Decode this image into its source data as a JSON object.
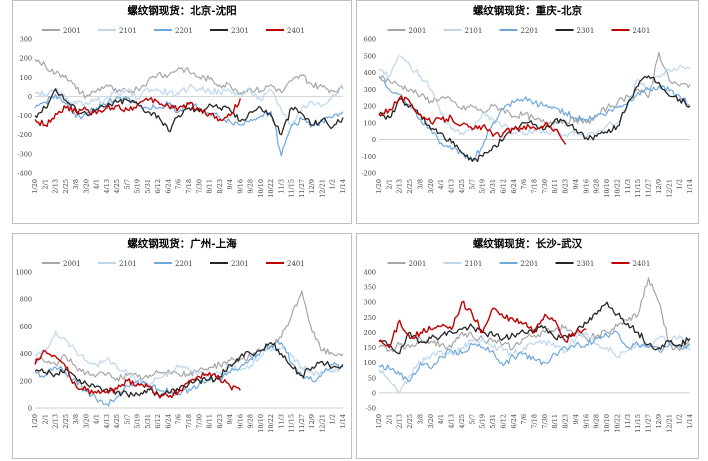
{
  "chart_data": [
    {
      "type": "line",
      "title": "螺纹钢现货：北京-沈阳",
      "ylim": [
        -400,
        300
      ],
      "yticks": [
        "300",
        "200",
        "100",
        "0",
        "-100",
        "-200",
        "-300",
        "-400"
      ],
      "x_tick_labels": [
        "1/20",
        "2/1",
        "2/13",
        "2/25",
        "3/8",
        "3/20",
        "4/1",
        "4/13",
        "4/25",
        "5/7",
        "5/19",
        "5/31",
        "6/12",
        "6/24",
        "7/6",
        "7/18",
        "7/30",
        "8/11",
        "8/23",
        "9/4",
        "9/16",
        "9/28",
        "10/10",
        "10/22",
        "11/3",
        "11/15",
        "11/27",
        "12/9",
        "12/21",
        "1/2",
        "1/14"
      ],
      "legend_position": "top",
      "series": [
        {
          "name": "2001",
          "color": "#a6a6a6",
          "width": 1.2,
          "end_index": 30,
          "values": [
            195,
            160,
            120,
            110,
            40,
            0,
            30,
            60,
            20,
            30,
            40,
            80,
            120,
            110,
            150,
            130,
            100,
            90,
            60,
            60,
            20,
            40,
            30,
            60,
            20,
            80,
            110,
            60,
            50,
            30,
            40
          ]
        },
        {
          "name": "2101",
          "color": "#bdd7ee",
          "width": 1.2,
          "end_index": 30,
          "values": [
            20,
            10,
            30,
            -10,
            -40,
            -30,
            -20,
            -10,
            20,
            30,
            -10,
            40,
            30,
            20,
            10,
            50,
            40,
            30,
            20,
            30,
            10,
            30,
            -20,
            30,
            -70,
            -150,
            -60,
            -30,
            -50,
            10,
            60
          ]
        },
        {
          "name": "2201",
          "color": "#6fa8dc",
          "width": 1.2,
          "end_index": 30,
          "values": [
            -60,
            -30,
            10,
            -40,
            -110,
            -90,
            -60,
            -40,
            0,
            -10,
            -40,
            -60,
            -60,
            -40,
            -80,
            -30,
            -60,
            -90,
            -110,
            -130,
            -150,
            -120,
            -100,
            -80,
            -310,
            -150,
            -120,
            -150,
            -130,
            -110,
            -80
          ]
        },
        {
          "name": "2301",
          "color": "#262626",
          "width": 1.3,
          "end_index": 30,
          "values": [
            -100,
            -60,
            40,
            -20,
            -70,
            -90,
            -70,
            -50,
            -30,
            -20,
            -40,
            -80,
            -100,
            -180,
            -100,
            -60,
            -80,
            -40,
            -60,
            -70,
            -130,
            -80,
            -60,
            -100,
            -200,
            -60,
            -90,
            -150,
            -120,
            -160,
            -110
          ]
        },
        {
          "name": "2401",
          "color": "#c00000",
          "width": 1.4,
          "end_index": 20,
          "values": [
            -120,
            -150,
            -90,
            -60,
            -80,
            -70,
            -90,
            -60,
            -50,
            -70,
            -40,
            -20,
            -30,
            -50,
            -60,
            -40,
            -70,
            -90,
            -120,
            -100,
            -10
          ]
        }
      ]
    },
    {
      "type": "line",
      "title": "螺纹钢现货：重庆-北京",
      "ylim": [
        -200,
        600
      ],
      "yticks": [
        "600",
        "500",
        "400",
        "300",
        "200",
        "100",
        "0",
        "-100",
        "-200"
      ],
      "x_tick_labels": [
        "1/20",
        "2/1",
        "2/13",
        "2/25",
        "3/8",
        "3/20",
        "4/1",
        "4/13",
        "4/25",
        "5/7",
        "5/19",
        "5/31",
        "6/12",
        "6/24",
        "7/6",
        "7/18",
        "7/30",
        "8/11",
        "8/23",
        "9/4",
        "9/16",
        "9/28",
        "10/10",
        "10/22",
        "11/3",
        "11/15",
        "11/27",
        "12/9",
        "12/21",
        "1/2",
        "1/14"
      ],
      "legend_position": "top",
      "series": [
        {
          "name": "2001",
          "color": "#a6a6a6",
          "width": 1.2,
          "end_index": 30,
          "values": [
            380,
            350,
            320,
            300,
            260,
            230,
            250,
            230,
            180,
            200,
            160,
            200,
            180,
            140,
            150,
            120,
            100,
            110,
            110,
            120,
            100,
            140,
            190,
            220,
            260,
            300,
            250,
            520,
            350,
            320,
            330
          ]
        },
        {
          "name": "2101",
          "color": "#bdd7ee",
          "width": 1.2,
          "end_index": 30,
          "values": [
            420,
            380,
            500,
            440,
            380,
            300,
            150,
            60,
            40,
            50,
            160,
            120,
            80,
            40,
            30,
            60,
            40,
            60,
            30,
            50,
            10,
            40,
            80,
            100,
            200,
            360,
            300,
            380,
            420,
            440,
            420
          ]
        },
        {
          "name": "2201",
          "color": "#6fa8dc",
          "width": 1.2,
          "end_index": 30,
          "values": [
            370,
            300,
            270,
            200,
            120,
            60,
            -20,
            -60,
            -80,
            -120,
            -40,
            100,
            180,
            220,
            240,
            220,
            200,
            190,
            160,
            130,
            120,
            140,
            160,
            190,
            220,
            280,
            300,
            320,
            290,
            260,
            200
          ]
        },
        {
          "name": "2301",
          "color": "#262626",
          "width": 1.3,
          "end_index": 30,
          "values": [
            150,
            130,
            240,
            200,
            150,
            60,
            40,
            -20,
            -80,
            -130,
            -100,
            -40,
            0,
            60,
            100,
            90,
            60,
            120,
            100,
            60,
            10,
            20,
            40,
            80,
            220,
            320,
            380,
            340,
            260,
            240,
            200
          ]
        },
        {
          "name": "2401",
          "color": "#c00000",
          "width": 1.4,
          "end_index": 18,
          "values": [
            150,
            180,
            250,
            220,
            150,
            100,
            120,
            130,
            90,
            60,
            80,
            20,
            40,
            60,
            80,
            70,
            90,
            60,
            -30
          ]
        }
      ]
    },
    {
      "type": "line",
      "title": "螺纹钢现货：广州-上海",
      "ylim": [
        0,
        1000
      ],
      "yticks": [
        "1000",
        "800",
        "600",
        "400",
        "200",
        "0"
      ],
      "x_tick_labels": [
        "1/20",
        "2/1",
        "2/13",
        "2/25",
        "3/8",
        "3/20",
        "4/1",
        "4/13",
        "4/25",
        "5/7",
        "5/19",
        "5/31",
        "6/12",
        "6/24",
        "7/6",
        "7/18",
        "7/30",
        "8/11",
        "8/23",
        "9/4",
        "9/16",
        "9/28",
        "10/10",
        "10/22",
        "11/3",
        "11/15",
        "11/27",
        "12/9",
        "12/21",
        "1/2",
        "1/14"
      ],
      "legend_position": "top",
      "series": [
        {
          "name": "2001",
          "color": "#a6a6a6",
          "width": 1.2,
          "end_index": 30,
          "values": [
            360,
            340,
            320,
            380,
            300,
            260,
            240,
            250,
            220,
            240,
            230,
            220,
            260,
            280,
            250,
            240,
            280,
            300,
            320,
            350,
            360,
            380,
            420,
            450,
            520,
            680,
            860,
            560,
            420,
            400,
            400
          ]
        },
        {
          "name": "2101",
          "color": "#bdd7ee",
          "width": 1.2,
          "end_index": 30,
          "values": [
            390,
            420,
            560,
            500,
            420,
            350,
            320,
            360,
            300,
            260,
            200,
            180,
            220,
            260,
            300,
            280,
            260,
            220,
            260,
            300,
            280,
            310,
            380,
            420,
            440,
            380,
            300,
            260,
            260,
            280,
            300
          ]
        },
        {
          "name": "2201",
          "color": "#6fa8dc",
          "width": 1.2,
          "end_index": 30,
          "values": [
            260,
            240,
            300,
            260,
            200,
            120,
            60,
            30,
            80,
            160,
            200,
            160,
            140,
            120,
            100,
            140,
            180,
            200,
            220,
            260,
            300,
            360,
            420,
            460,
            480,
            330,
            240,
            200,
            260,
            320,
            300
          ]
        },
        {
          "name": "2301",
          "color": "#262626",
          "width": 1.3,
          "end_index": 30,
          "values": [
            270,
            260,
            250,
            290,
            220,
            180,
            160,
            140,
            120,
            100,
            100,
            140,
            100,
            110,
            130,
            180,
            200,
            210,
            230,
            320,
            380,
            400,
            420,
            480,
            400,
            300,
            240,
            300,
            340,
            300,
            320
          ]
        },
        {
          "name": "2401",
          "color": "#c00000",
          "width": 1.4,
          "end_index": 20,
          "values": [
            320,
            420,
            380,
            300,
            160,
            130,
            110,
            120,
            140,
            200,
            180,
            160,
            100,
            80,
            120,
            200,
            230,
            260,
            210,
            160,
            130
          ]
        }
      ]
    },
    {
      "type": "line",
      "title": "螺纹钢现货：长沙-武汉",
      "ylim": [
        -50,
        400
      ],
      "yticks": [
        "400",
        "350",
        "300",
        "250",
        "200",
        "150",
        "100",
        "50",
        "0",
        "-50"
      ],
      "x_tick_labels": [
        "1/20",
        "2/1",
        "2/13",
        "2/25",
        "3/8",
        "3/20",
        "4/1",
        "4/13",
        "4/25",
        "5/7",
        "5/19",
        "5/31",
        "6/12",
        "6/24",
        "7/6",
        "7/18",
        "7/30",
        "8/11",
        "8/23",
        "9/4",
        "9/16",
        "9/28",
        "10/10",
        "10/22",
        "11/3",
        "11/15",
        "11/27",
        "12/9",
        "12/21",
        "1/2",
        "1/14"
      ],
      "legend_position": "top",
      "series": [
        {
          "name": "2001",
          "color": "#a6a6a6",
          "width": 1.2,
          "end_index": 30,
          "values": [
            150,
            140,
            160,
            150,
            180,
            170,
            160,
            150,
            200,
            190,
            180,
            170,
            160,
            150,
            180,
            190,
            200,
            210,
            220,
            200,
            180,
            190,
            200,
            220,
            240,
            260,
            380,
            300,
            160,
            140,
            180
          ]
        },
        {
          "name": "2101",
          "color": "#bdd7ee",
          "width": 1.2,
          "end_index": 30,
          "values": [
            80,
            40,
            0,
            60,
            100,
            120,
            140,
            130,
            150,
            170,
            180,
            150,
            140,
            130,
            150,
            160,
            170,
            150,
            140,
            180,
            200,
            160,
            150,
            120,
            140,
            160,
            150,
            180,
            170,
            190,
            140
          ]
        },
        {
          "name": "2201",
          "color": "#6fa8dc",
          "width": 1.2,
          "end_index": 30,
          "values": [
            90,
            80,
            60,
            40,
            100,
            80,
            120,
            140,
            130,
            160,
            150,
            140,
            90,
            120,
            130,
            110,
            100,
            130,
            150,
            160,
            160,
            180,
            190,
            200,
            150,
            160,
            150,
            140,
            160,
            150,
            160
          ]
        },
        {
          "name": "2301",
          "color": "#262626",
          "width": 1.3,
          "end_index": 30,
          "values": [
            170,
            160,
            130,
            200,
            170,
            180,
            190,
            200,
            210,
            220,
            200,
            190,
            180,
            190,
            200,
            210,
            220,
            180,
            190,
            200,
            230,
            260,
            300,
            260,
            230,
            200,
            160,
            150,
            170,
            160,
            180
          ]
        },
        {
          "name": "2401",
          "color": "#c00000",
          "width": 1.4,
          "end_index": 20,
          "values": [
            170,
            150,
            240,
            180,
            200,
            210,
            220,
            210,
            300,
            260,
            200,
            280,
            250,
            240,
            230,
            200,
            260,
            240,
            170,
            200,
            210
          ]
        }
      ]
    }
  ]
}
